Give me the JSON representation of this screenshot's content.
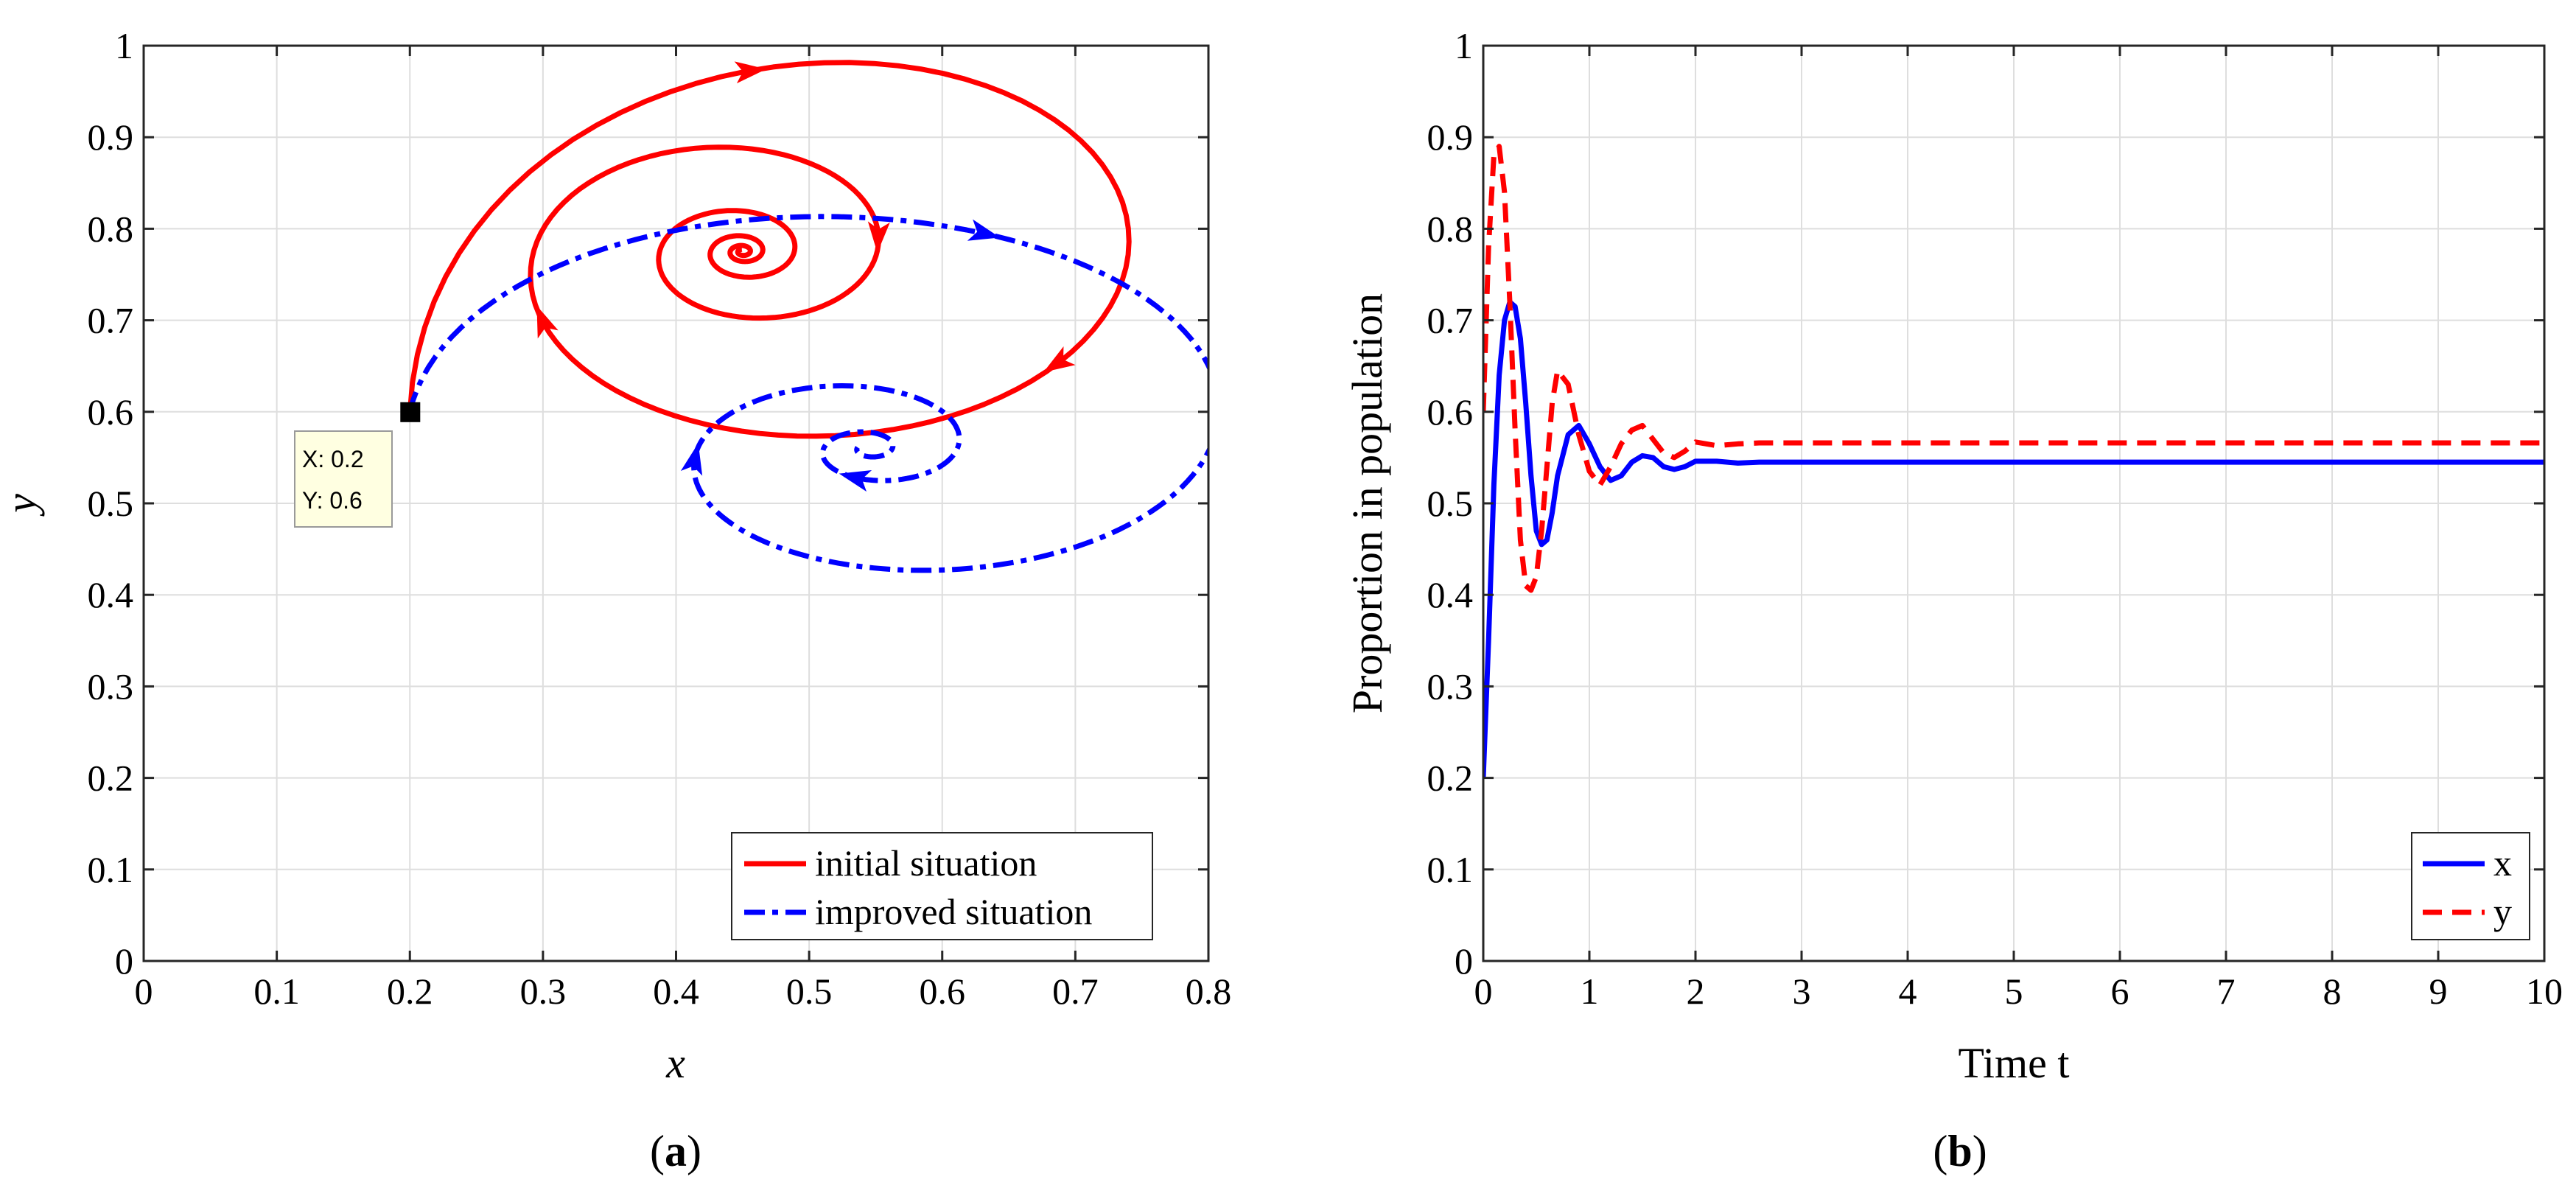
{
  "colors": {
    "initial": "#ff0000",
    "improved": "#0000ff",
    "x_series": "#0000ff",
    "y_series": "#ff0000",
    "grid": "#dedede",
    "tooltip_bg": "#ffffe1"
  },
  "chart_data": [
    {
      "id": "a",
      "type": "line",
      "panel_label_open": "(",
      "panel_label_letter": "a",
      "panel_label_close": ")",
      "xlabel": "x",
      "ylabel": "y",
      "xlim": [
        0,
        0.8
      ],
      "ylim": [
        0,
        1
      ],
      "xticks": [
        0,
        0.1,
        0.2,
        0.3,
        0.4,
        0.5,
        0.6,
        0.7,
        0.8
      ],
      "yticks": [
        0,
        0.1,
        0.2,
        0.3,
        0.4,
        0.5,
        0.6,
        0.7,
        0.8,
        0.9,
        1
      ],
      "xtick_labels": [
        "0",
        "0.1",
        "0.2",
        "0.3",
        "0.4",
        "0.5",
        "0.6",
        "0.7",
        "0.8"
      ],
      "ytick_labels": [
        "0",
        "0.1",
        "0.2",
        "0.3",
        "0.4",
        "0.5",
        "0.6",
        "0.7",
        "0.8",
        "0.9",
        "1"
      ],
      "grid": true,
      "legend_position": "bottom-right",
      "series": [
        {
          "name": "initial situation",
          "style": "solid",
          "color": "#ff0000",
          "start": [
            0.2,
            0.6
          ],
          "center": [
            0.45,
            0.775
          ],
          "radii": [
            0.41,
            0.37
          ],
          "turns": 5.2,
          "decay": 2.6,
          "theta0_deg": 173,
          "arrows_at": [
            0.2,
            0.55,
            0.9,
            1.45
          ]
        },
        {
          "name": "improved situation",
          "style": "dashdot",
          "color": "#0000ff",
          "start": [
            0.2,
            0.6
          ],
          "center": [
            0.545,
            0.56
          ],
          "radii": [
            0.47,
            0.34
          ],
          "turns": 3.0,
          "decay": 2.1,
          "theta0_deg": 170,
          "arrows_at": [
            0.25,
            0.95,
            1.75
          ]
        }
      ],
      "datatip": {
        "x_text": "X: 0.2",
        "y_text": "Y: 0.6",
        "x": 0.2,
        "y": 0.6
      }
    },
    {
      "id": "b",
      "type": "line",
      "panel_label_open": "(",
      "panel_label_letter": "b",
      "panel_label_close": ")",
      "xlabel": "Time t",
      "ylabel": "Proportion in population",
      "xlim": [
        0,
        10
      ],
      "ylim": [
        0,
        1
      ],
      "xticks": [
        0,
        1,
        2,
        3,
        4,
        5,
        6,
        7,
        8,
        9,
        10
      ],
      "yticks": [
        0,
        0.1,
        0.2,
        0.3,
        0.4,
        0.5,
        0.6,
        0.7,
        0.8,
        0.9,
        1
      ],
      "xtick_labels": [
        "0",
        "1",
        "2",
        "3",
        "4",
        "5",
        "6",
        "7",
        "8",
        "9",
        "10"
      ],
      "ytick_labels": [
        "0",
        "0.1",
        "0.2",
        "0.3",
        "0.4",
        "0.5",
        "0.6",
        "0.7",
        "0.8",
        "0.9",
        "1"
      ],
      "grid": true,
      "legend_position": "bottom-right",
      "series": [
        {
          "name": "x",
          "style": "solid",
          "color": "#0000ff",
          "t": [
            0,
            0.05,
            0.1,
            0.15,
            0.2,
            0.25,
            0.3,
            0.35,
            0.4,
            0.45,
            0.5,
            0.55,
            0.6,
            0.65,
            0.7,
            0.8,
            0.9,
            1.0,
            1.1,
            1.2,
            1.3,
            1.4,
            1.5,
            1.6,
            1.7,
            1.8,
            1.9,
            2.0,
            2.2,
            2.4,
            2.6,
            3.0,
            4.0,
            5.0,
            6.0,
            7.0,
            8.0,
            9.0,
            10.0
          ],
          "v": [
            0.2,
            0.35,
            0.52,
            0.64,
            0.7,
            0.72,
            0.715,
            0.68,
            0.61,
            0.53,
            0.47,
            0.455,
            0.46,
            0.49,
            0.53,
            0.575,
            0.585,
            0.565,
            0.54,
            0.525,
            0.53,
            0.545,
            0.552,
            0.55,
            0.54,
            0.537,
            0.54,
            0.546,
            0.546,
            0.544,
            0.545,
            0.545,
            0.545,
            0.545,
            0.545,
            0.545,
            0.545,
            0.545,
            0.545
          ]
        },
        {
          "name": "y",
          "style": "dashed",
          "color": "#ff0000",
          "t": [
            0,
            0.05,
            0.1,
            0.15,
            0.2,
            0.25,
            0.3,
            0.35,
            0.4,
            0.45,
            0.5,
            0.55,
            0.6,
            0.65,
            0.7,
            0.8,
            0.9,
            1.0,
            1.1,
            1.2,
            1.3,
            1.4,
            1.5,
            1.6,
            1.7,
            1.8,
            1.9,
            2.0,
            2.2,
            2.4,
            2.6,
            3.0,
            4.0,
            5.0,
            6.0,
            7.0,
            8.0,
            9.0,
            10.0
          ],
          "v": [
            0.6,
            0.78,
            0.88,
            0.89,
            0.84,
            0.72,
            0.58,
            0.46,
            0.41,
            0.405,
            0.42,
            0.47,
            0.54,
            0.61,
            0.645,
            0.63,
            0.575,
            0.535,
            0.52,
            0.54,
            0.565,
            0.58,
            0.585,
            0.57,
            0.555,
            0.55,
            0.557,
            0.567,
            0.563,
            0.565,
            0.566,
            0.566,
            0.566,
            0.566,
            0.566,
            0.566,
            0.566,
            0.566,
            0.566
          ]
        }
      ]
    }
  ]
}
